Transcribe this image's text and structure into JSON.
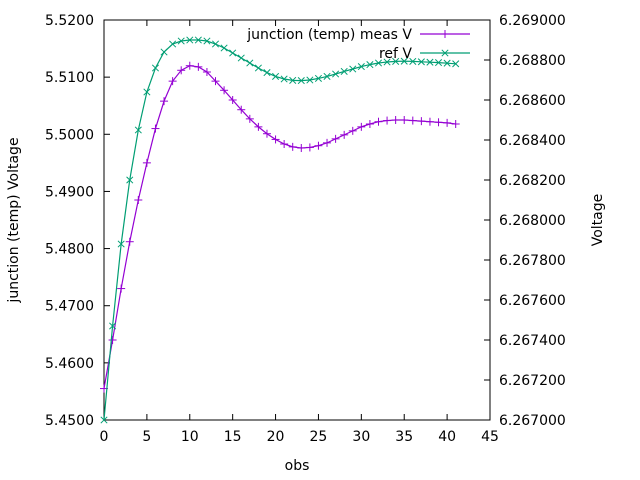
{
  "chart_data": {
    "type": "line",
    "title": "",
    "xlabel": "obs",
    "ylabel": "junction (temp) Voltage",
    "y2label": "Voltage",
    "xlim": [
      0,
      45
    ],
    "ylim": [
      5.45,
      5.52
    ],
    "y2lim": [
      6.267,
      6.269
    ],
    "x_ticks": [
      "0",
      "5",
      "10",
      "15",
      "20",
      "25",
      "30",
      "35",
      "40",
      "45"
    ],
    "y_ticks": [
      "5.4500",
      "5.4600",
      "5.4700",
      "5.4800",
      "5.4900",
      "5.5000",
      "5.5100",
      "5.5200"
    ],
    "y2_ticks": [
      "6.267000",
      "6.267200",
      "6.267400",
      "6.267600",
      "6.267800",
      "6.268000",
      "6.268200",
      "6.268400",
      "6.268600",
      "6.268800",
      "6.269000"
    ],
    "grid": false,
    "legend_position": "top-right",
    "series": [
      {
        "name": "junction (temp) meas V",
        "axis": "y",
        "color": "#9400d3",
        "marker": "plus",
        "x": [
          0,
          1,
          2,
          3,
          4,
          5,
          6,
          7,
          8,
          9,
          10,
          11,
          12,
          13,
          14,
          15,
          16,
          17,
          18,
          19,
          20,
          21,
          22,
          23,
          24,
          25,
          26,
          27,
          28,
          29,
          30,
          31,
          32,
          33,
          34,
          35,
          36,
          37,
          38,
          39,
          40,
          41
        ],
        "values": [
          5.4555,
          5.464,
          5.473,
          5.4812,
          5.4885,
          5.495,
          5.501,
          5.5058,
          5.5093,
          5.5112,
          5.512,
          5.5118,
          5.5109,
          5.5093,
          5.5077,
          5.506,
          5.5043,
          5.5027,
          5.5013,
          5.5001,
          5.4991,
          5.4983,
          5.4978,
          5.4976,
          5.4977,
          5.498,
          5.4985,
          5.4992,
          5.4999,
          5.5006,
          5.5013,
          5.5018,
          5.5022,
          5.5024,
          5.5025,
          5.5025,
          5.5024,
          5.5023,
          5.5022,
          5.5021,
          5.502,
          5.5018
        ]
      },
      {
        "name": "ref V",
        "axis": "y2",
        "color": "#009e73",
        "marker": "cross",
        "x": [
          0,
          1,
          2,
          3,
          4,
          5,
          6,
          7,
          8,
          9,
          10,
          11,
          12,
          13,
          14,
          15,
          16,
          17,
          18,
          19,
          20,
          21,
          22,
          23,
          24,
          25,
          26,
          27,
          28,
          29,
          30,
          31,
          32,
          33,
          34,
          35,
          36,
          37,
          38,
          39,
          40,
          41
        ],
        "values": [
          6.267,
          6.26747,
          6.26788,
          6.2682,
          6.26845,
          6.26864,
          6.26876,
          6.26884,
          6.26888,
          6.268895,
          6.2689,
          6.2689,
          6.268895,
          6.26888,
          6.26886,
          6.268835,
          6.26881,
          6.268785,
          6.26876,
          6.268737,
          6.268718,
          6.268705,
          6.268698,
          6.268697,
          6.2687,
          6.268708,
          6.268718,
          6.26873,
          6.268743,
          6.268755,
          6.268767,
          6.268777,
          6.268785,
          6.26879,
          6.268793,
          6.268794,
          6.268793,
          6.268791,
          6.268789,
          6.268787,
          6.268784,
          6.268781
        ]
      }
    ]
  }
}
